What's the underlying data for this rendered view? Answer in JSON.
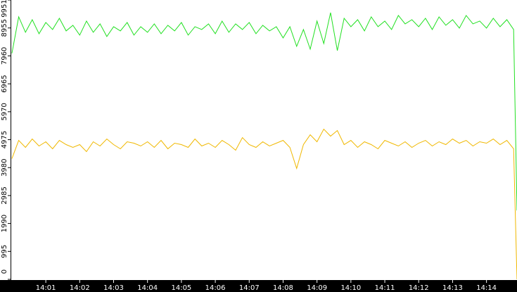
{
  "chart_data": {
    "type": "line",
    "x": [
      840,
      840.2,
      840.4,
      840.6,
      840.8,
      841,
      841.2,
      841.4,
      841.6,
      841.8,
      842,
      842.2,
      842.4,
      842.6,
      842.8,
      843,
      843.2,
      843.4,
      843.6,
      843.8,
      844,
      844.2,
      844.4,
      844.6,
      844.8,
      845,
      845.2,
      845.4,
      845.6,
      845.8,
      846,
      846.2,
      846.4,
      846.6,
      846.8,
      847,
      847.2,
      847.4,
      847.6,
      847.8,
      848,
      848.2,
      848.4,
      848.6,
      848.8,
      849,
      849.2,
      849.4,
      849.6,
      849.8,
      850,
      850.2,
      850.4,
      850.6,
      850.8,
      851,
      851.2,
      851.4,
      851.6,
      851.8,
      852,
      852.2,
      852.4,
      852.6,
      852.8,
      853,
      853.2,
      853.4,
      853.6,
      853.8,
      854,
      854.2,
      854.4,
      854.6,
      854.8,
      854.9
    ],
    "series": [
      {
        "color": "#22e022",
        "values": [
          8050,
          9350,
          8800,
          9250,
          8750,
          9150,
          8900,
          9300,
          8850,
          9050,
          8700,
          9200,
          8800,
          9100,
          8650,
          9000,
          8850,
          9150,
          8700,
          9000,
          8800,
          9100,
          8750,
          9050,
          8850,
          9150,
          8700,
          9000,
          8900,
          9100,
          8750,
          9200,
          8800,
          9100,
          8900,
          9150,
          8750,
          9050,
          8850,
          9000,
          8600,
          9000,
          8300,
          8900,
          8200,
          9200,
          8400,
          9500,
          8150,
          9300,
          9000,
          9250,
          8850,
          9350,
          9000,
          9200,
          8900,
          9400,
          9100,
          9250,
          9000,
          9300,
          8900,
          9350,
          9050,
          9250,
          8950,
          9400,
          9100,
          9200,
          8950,
          9300,
          9000,
          9250,
          8900,
          2450
        ]
      },
      {
        "color": "#f0b800",
        "values": [
          4300,
          4950,
          4700,
          5000,
          4750,
          4900,
          4650,
          4950,
          4800,
          4700,
          4800,
          4550,
          4900,
          4750,
          5000,
          4800,
          4650,
          4900,
          4850,
          4750,
          4900,
          4700,
          4950,
          4650,
          4850,
          4800,
          4700,
          5000,
          4750,
          4850,
          4700,
          4950,
          4800,
          4600,
          5050,
          4800,
          4700,
          4900,
          4750,
          4850,
          4950,
          4700,
          3950,
          4800,
          5150,
          4900,
          5350,
          5100,
          5300,
          4800,
          4950,
          4700,
          4900,
          4800,
          4650,
          4950,
          4850,
          4750,
          4900,
          4700,
          4850,
          4950,
          4750,
          4900,
          4800,
          5000,
          4850,
          4950,
          4750,
          4900,
          4850,
          5000,
          4800,
          4950,
          4650,
          0
        ]
      }
    ],
    "xlim": [
      839.96,
      854.9
    ],
    "xticks": [
      {
        "value": 841,
        "label": "14:01"
      },
      {
        "value": 842,
        "label": "14:02"
      },
      {
        "value": 843,
        "label": "14:03"
      },
      {
        "value": 844,
        "label": "14:04"
      },
      {
        "value": 845,
        "label": "14:05"
      },
      {
        "value": 846,
        "label": "14:06"
      },
      {
        "value": 847,
        "label": "14:07"
      },
      {
        "value": 848,
        "label": "14:08"
      },
      {
        "value": 849,
        "label": "14:09"
      },
      {
        "value": 850,
        "label": "14:10"
      },
      {
        "value": 851,
        "label": "14:11"
      },
      {
        "value": 852,
        "label": "14:12"
      },
      {
        "value": 853,
        "label": "14:13"
      },
      {
        "value": 854,
        "label": "14:14"
      }
    ],
    "ylim": [
      0,
      9951
    ],
    "yticks": [
      0,
      995,
      1990,
      2985,
      3980,
      4975,
      5970,
      6965,
      7960,
      8955,
      9951
    ]
  }
}
